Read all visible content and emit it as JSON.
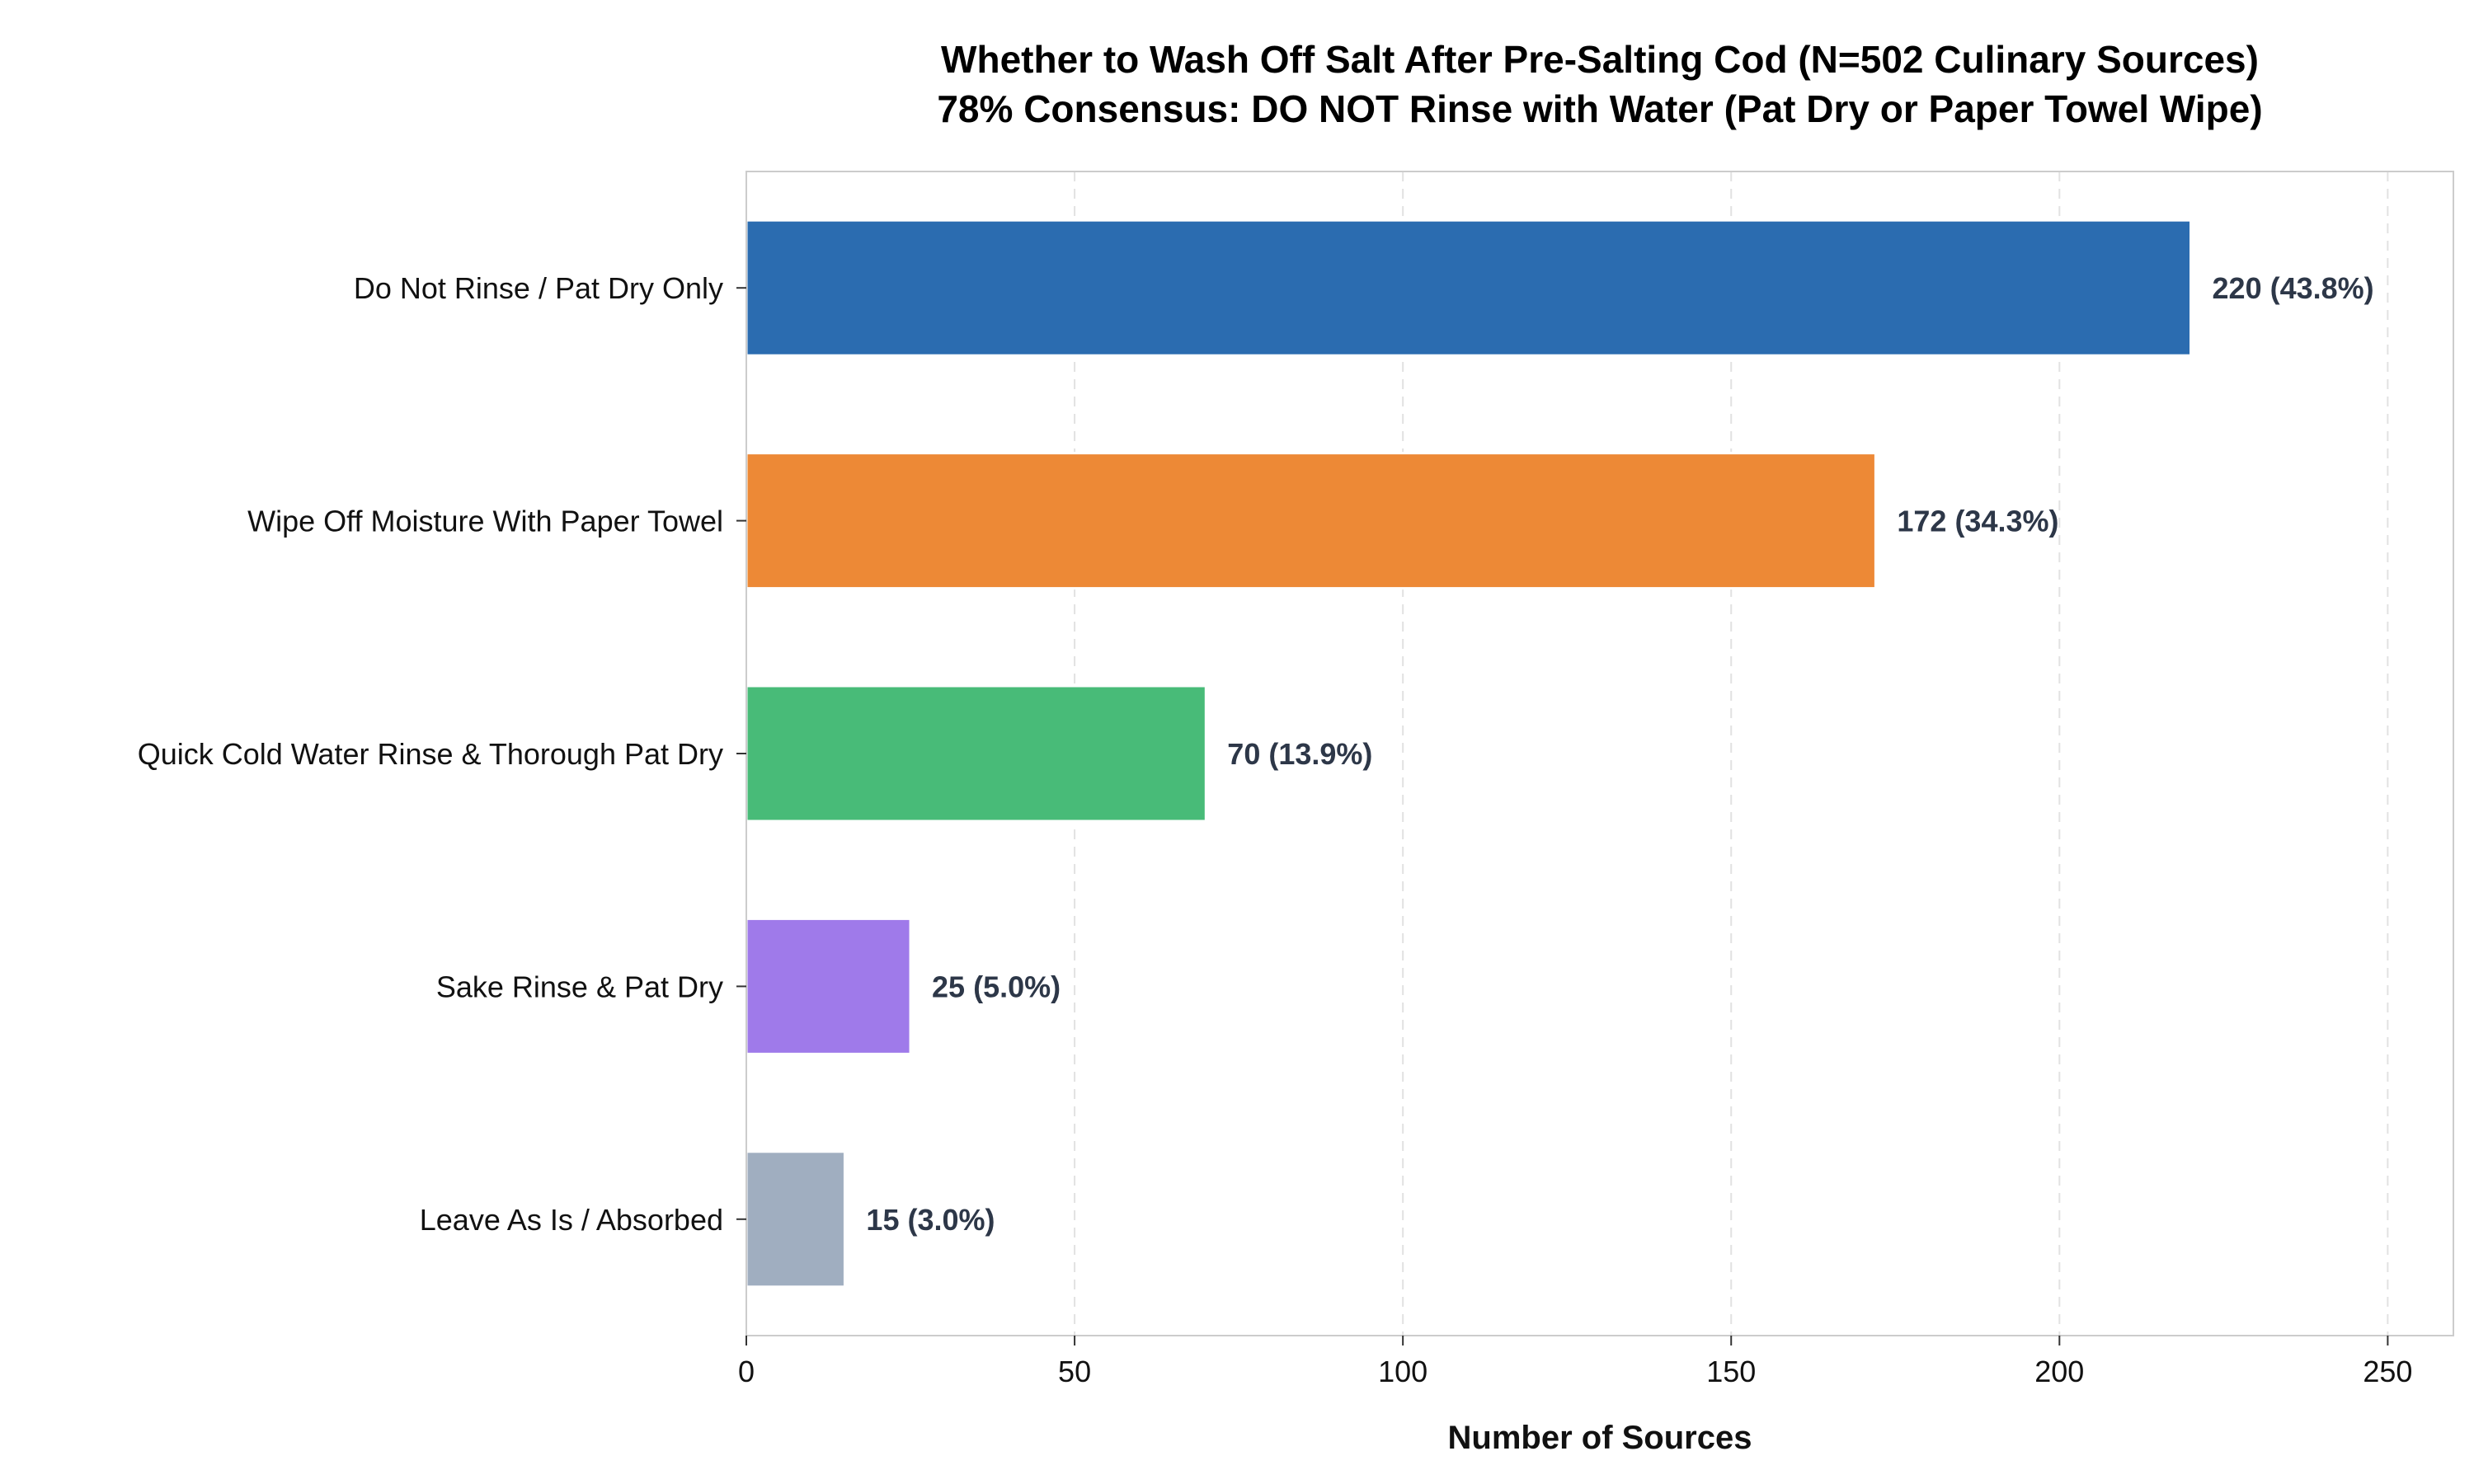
{
  "chart_data": {
    "type": "bar",
    "orientation": "horizontal",
    "title": [
      "Whether to Wash Off Salt After Pre-Salting Cod (N=502 Culinary Sources)",
      "78% Consensus: DO NOT Rinse with Water (Pat Dry or Paper Towel Wipe)"
    ],
    "xlabel": "Number of Sources",
    "ylabel": "",
    "xlim": [
      0,
      260
    ],
    "x_ticks": [
      "0",
      "50",
      "100",
      "150",
      "200",
      "250"
    ],
    "x_tick_values": [
      0,
      50,
      100,
      150,
      200,
      250
    ],
    "grid": "x-dashed",
    "categories": [
      "Do Not Rinse / Pat Dry Only",
      "Wipe Off Moisture With Paper Towel",
      "Quick Cold Water Rinse & Thorough Pat Dry",
      "Sake Rinse & Pat Dry",
      "Leave As Is / Absorbed"
    ],
    "values": [
      220,
      172,
      70,
      25,
      15
    ],
    "data_labels": [
      "220 (43.8%)",
      "172 (34.3%)",
      "70 (13.9%)",
      "25 (5.0%)",
      "15 (3.0%)"
    ],
    "colors": [
      "#2b6cb0",
      "#ed8936",
      "#48bb78",
      "#9f7aea",
      "#a0aec0"
    ],
    "label_color": "#2d3748",
    "grid_color": "#e2e2e2",
    "spine_color": "#cccccc"
  }
}
